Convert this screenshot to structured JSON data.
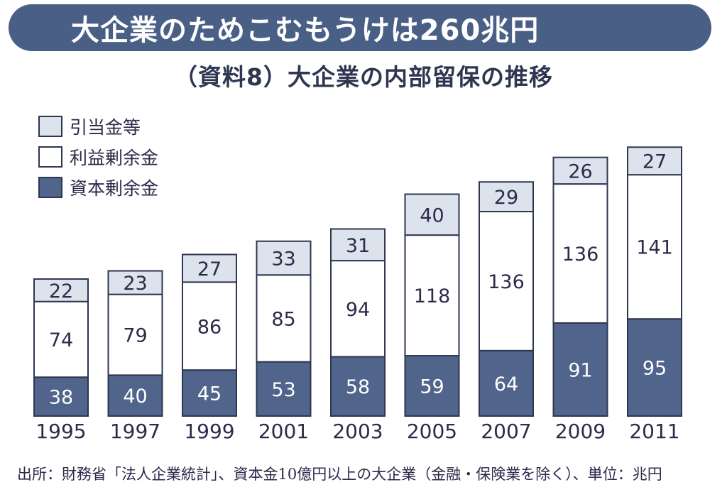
{
  "banner": {
    "title": "大企業のためこむもうけは260兆円"
  },
  "subtitle": "（資料8）大企業の内部留保の推移",
  "legend": [
    {
      "label": "引当金等",
      "color": "#dde3ec"
    },
    {
      "label": "利益剰余金",
      "color": "#ffffff"
    },
    {
      "label": "資本剰余金",
      "color": "#51648c"
    }
  ],
  "chart_data": {
    "type": "bar",
    "stacked": true,
    "categories": [
      "1995",
      "1997",
      "1999",
      "2001",
      "2003",
      "2005",
      "2007",
      "2009",
      "2011"
    ],
    "series": [
      {
        "name": "資本剰余金",
        "values": [
          38,
          40,
          45,
          53,
          58,
          59,
          64,
          91,
          95
        ]
      },
      {
        "name": "利益剰余金",
        "values": [
          74,
          79,
          86,
          85,
          94,
          118,
          136,
          136,
          141
        ]
      },
      {
        "name": "引当金等",
        "values": [
          22,
          23,
          27,
          33,
          31,
          40,
          29,
          26,
          27
        ]
      }
    ],
    "series_colors": [
      "#51648c",
      "#ffffff",
      "#dde3ec"
    ],
    "legend_position": "top-left",
    "grid": false
  },
  "footer": "出所：財務省「法人企業統計」、資本金10億円以上の大企業（金融・保険業を除く）、単位：兆円"
}
